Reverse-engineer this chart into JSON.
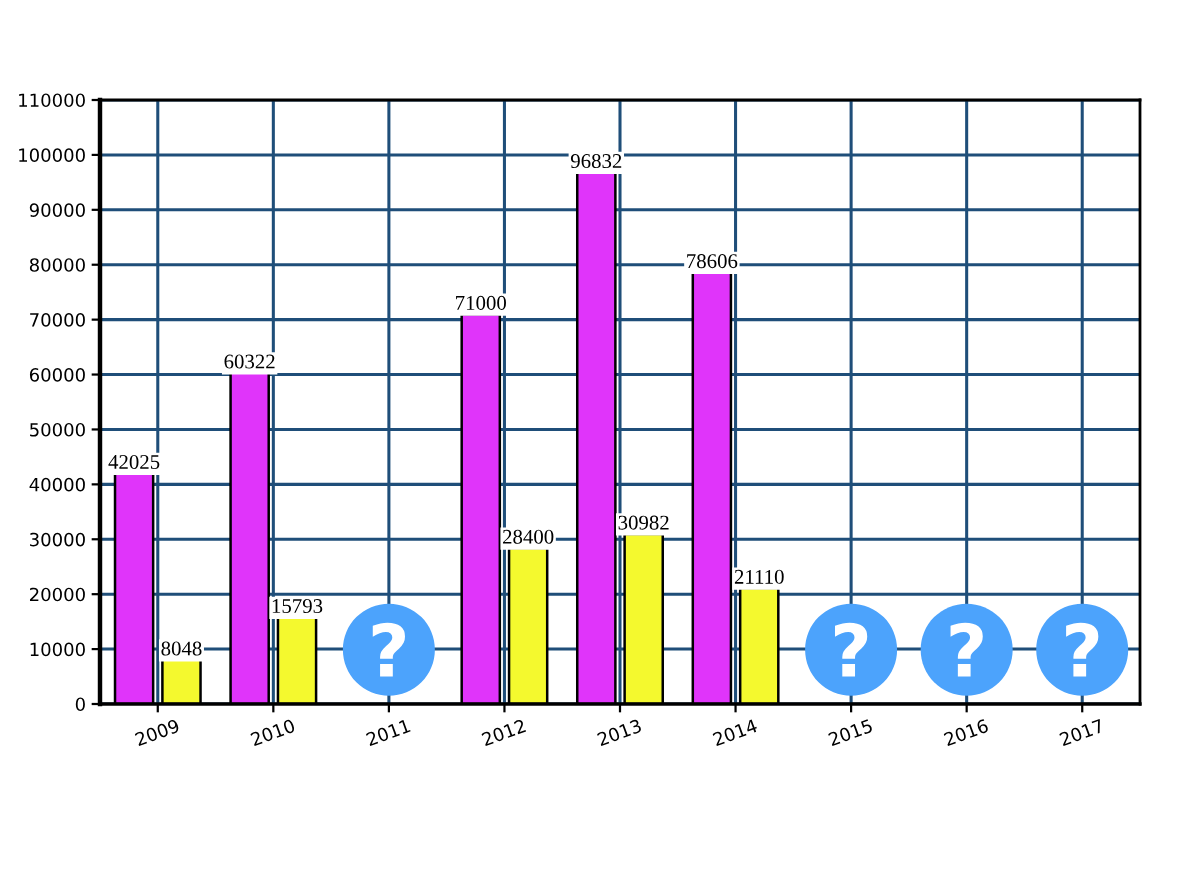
{
  "chart_data": {
    "type": "bar",
    "categories": [
      "2009",
      "2010",
      "2011",
      "2012",
      "2013",
      "2014",
      "2015",
      "2016",
      "2017"
    ],
    "series": [
      {
        "color": "#e034fa",
        "values": [
          42025,
          60322,
          null,
          71000,
          96832,
          78606,
          null,
          null,
          null
        ]
      },
      {
        "color": "#f4f92e",
        "values": [
          8048,
          15793,
          null,
          28400,
          30982,
          21110,
          null,
          null,
          null
        ]
      }
    ],
    "ylim": [
      0,
      110000
    ],
    "yticks": [
      0,
      10000,
      20000,
      30000,
      40000,
      50000,
      60000,
      70000,
      80000,
      90000,
      100000,
      110000
    ],
    "grid": true,
    "data_labels": true
  }
}
